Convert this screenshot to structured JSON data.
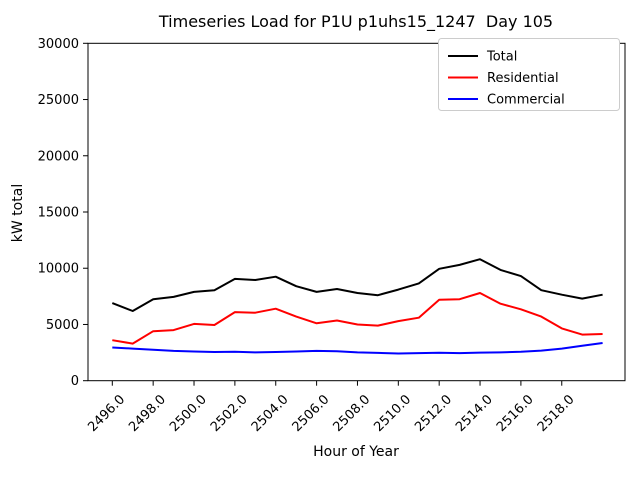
{
  "window": {
    "background_color": "#ffffff"
  },
  "chart_data": {
    "type": "line",
    "title": "Timeseries Load for P1U p1uhs15_1247  Day 105",
    "xlabel": "Hour of Year",
    "ylabel": "kW total",
    "grid": false,
    "legend_position": "upper right",
    "xlim": [
      2494.8,
      2521.2
    ],
    "ylim": [
      0,
      30000
    ],
    "x": [
      2496,
      2497,
      2498,
      2499,
      2500,
      2501,
      2502,
      2503,
      2504,
      2505,
      2506,
      2507,
      2508,
      2509,
      2510,
      2511,
      2512,
      2513,
      2514,
      2515,
      2516,
      2517,
      2518,
      2519,
      2520
    ],
    "x_tick_labels": [
      "2496.0",
      "2498.0",
      "2500.0",
      "2502.0",
      "2504.0",
      "2506.0",
      "2508.0",
      "2510.0",
      "2512.0",
      "2514.0",
      "2516.0",
      "2518.0"
    ],
    "y_ticks": [
      0,
      5000,
      10000,
      15000,
      20000,
      25000,
      30000
    ],
    "y_tick_labels": [
      "0",
      "5000",
      "10000",
      "15000",
      "20000",
      "25000",
      "30000"
    ],
    "series": [
      {
        "name": "Total",
        "color": "#000000",
        "values": [
          6900,
          6200,
          7250,
          7450,
          7900,
          8050,
          9050,
          8950,
          9250,
          8400,
          7900,
          8150,
          7800,
          7600,
          8100,
          8650,
          9950,
          10300,
          10800,
          9850,
          9300,
          8050,
          7650,
          7300,
          7650
        ]
      },
      {
        "name": "Residential",
        "color": "#ff0000",
        "values": [
          3600,
          3300,
          4400,
          4500,
          5050,
          4950,
          6100,
          6050,
          6400,
          5700,
          5100,
          5350,
          5000,
          4900,
          5300,
          5600,
          7200,
          7250,
          7800,
          6850,
          6350,
          5700,
          4650,
          4100,
          4150
        ]
      },
      {
        "name": "Commercial",
        "color": "#0000ff",
        "values": [
          2950,
          2850,
          2750,
          2650,
          2600,
          2550,
          2570,
          2520,
          2550,
          2600,
          2650,
          2620,
          2520,
          2470,
          2420,
          2450,
          2480,
          2450,
          2500,
          2520,
          2570,
          2680,
          2850,
          3100,
          3350
        ]
      }
    ]
  }
}
